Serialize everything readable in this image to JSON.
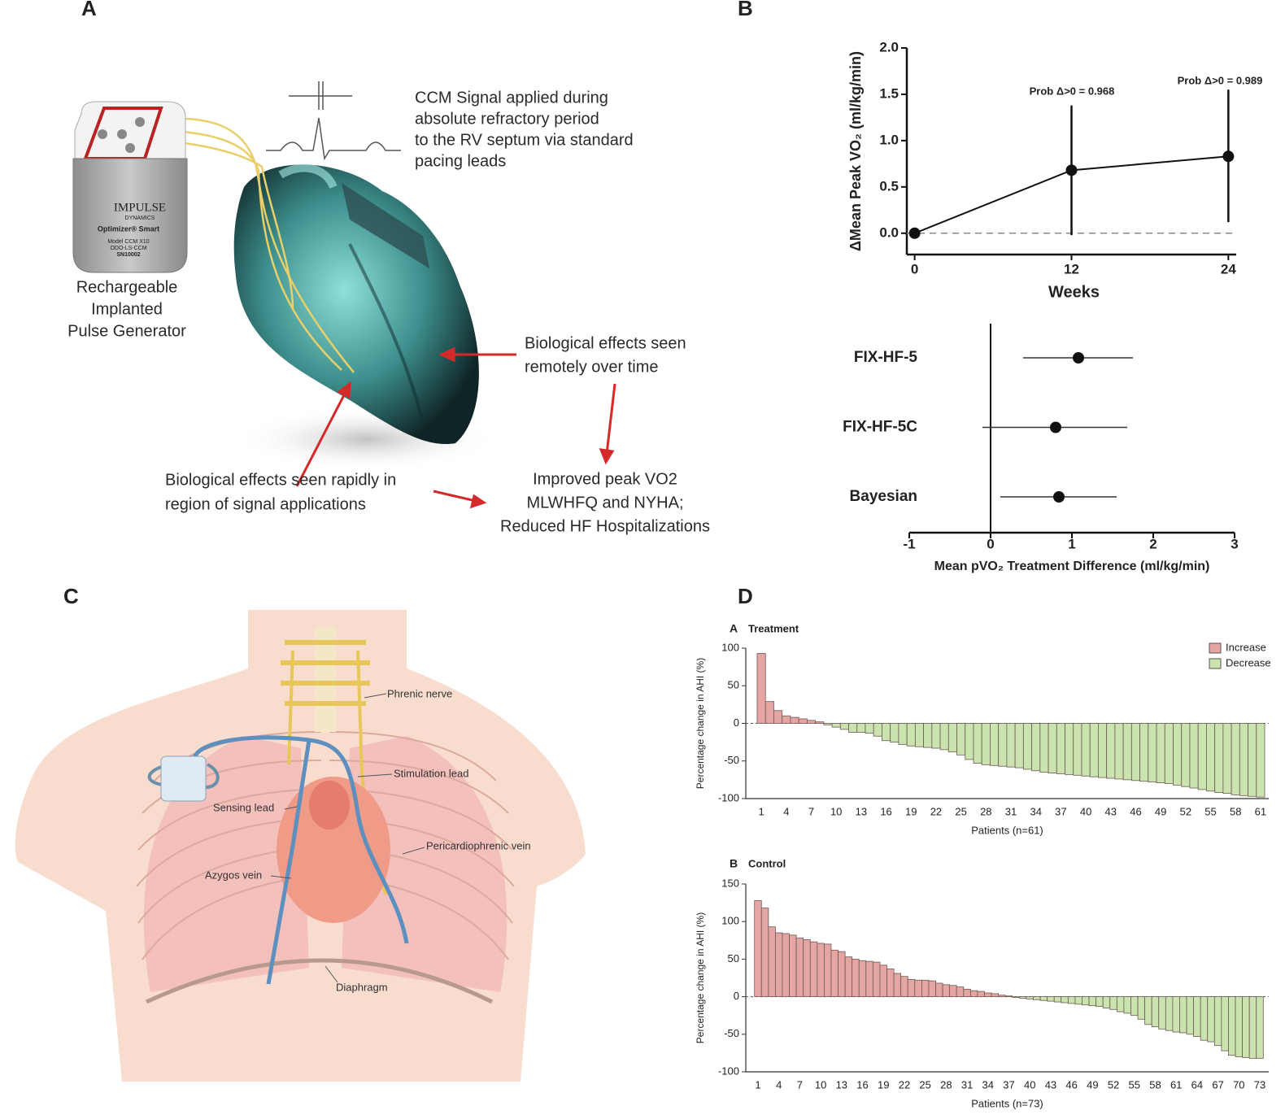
{
  "panels": [
    "A",
    "B",
    "C",
    "D"
  ],
  "diagram_a": {
    "signal_text": [
      "CCM Signal applied during",
      "absolute refractory period",
      "to the RV septum via standard",
      "pacing leads"
    ],
    "device_text": [
      "IMPULSE",
      "DYNAMICS",
      "Optimizer® Smart",
      "Model CCM X10",
      "ODO-LS-CCM",
      "SN10002"
    ],
    "generator_label": [
      "Rechargeable",
      "Implanted",
      "Pulse Generator"
    ],
    "remote_text": [
      "Biological effects seen",
      "remotely over time"
    ],
    "rapid_text": [
      "Biological effects seen rapidly in",
      "region of signal applications"
    ],
    "outcome_text": [
      "Improved peak VO2",
      "MLWHFQ and NYHA;",
      "Reduced HF Hospitalizations"
    ]
  },
  "diagram_c": {
    "labels": [
      "Phrenic nerve",
      "Stimulation lead",
      "Sensing lead",
      "Pericardiophrenic vein",
      "Azygos vein",
      "Diaphragm"
    ]
  },
  "chart_data": [
    {
      "type": "line",
      "x_label": "Weeks",
      "y_label": "ΔMean Peak VO₂ (ml/kg/min)",
      "x": [
        0,
        12,
        24
      ],
      "values": [
        0,
        0.68,
        0.83
      ],
      "lower": [
        null,
        -0.02,
        0.12
      ],
      "upper": [
        null,
        1.38,
        1.55
      ],
      "annotations": [
        "Prob Δ>0 = 0.968",
        "Prob Δ>0 = 0.989"
      ],
      "xlim": [
        -0.6,
        24.6
      ],
      "xticks": [
        0,
        12,
        24
      ],
      "ylim": [
        -0.23,
        2.0
      ],
      "yticks": [
        {
          "value": 0,
          "label": "0.0"
        },
        0.5,
        {
          "value": 1,
          "label": "1.0"
        },
        1.5,
        {
          "value": 2,
          "label": "2.0"
        }
      ],
      "zero_line": true,
      "color": "#111111"
    },
    {
      "type": "forest",
      "x_label": "Mean pVO₂ Treatment Difference (ml/kg/min)",
      "categories": [
        "FIX-HF-5",
        "FIX-HF-5C",
        "Bayesian"
      ],
      "values": [
        1.08,
        0.8,
        0.84
      ],
      "lower": [
        0.4,
        -0.1,
        0.12
      ],
      "upper": [
        1.75,
        1.68,
        1.55
      ],
      "xlim": [
        -1,
        3
      ],
      "xticks": [
        -1,
        0,
        1,
        2,
        3
      ],
      "color": "#111111"
    },
    {
      "type": "bar",
      "panel_label": "A",
      "title": "Treatment",
      "x_label": "Patients (n=61)",
      "y_label": "Percentage change in AHI (%)",
      "categories": [
        "1",
        null,
        null,
        "4",
        null,
        null,
        "7",
        null,
        null,
        "10",
        null,
        null,
        "13",
        null,
        null,
        "16",
        null,
        null,
        "19",
        null,
        null,
        "22",
        null,
        null,
        "25",
        null,
        null,
        "28",
        null,
        null,
        "31",
        null,
        null,
        "34",
        null,
        null,
        "37",
        null,
        null,
        "40",
        null,
        null,
        "43",
        null,
        null,
        "46",
        null,
        null,
        "49",
        null,
        null,
        "52",
        null,
        null,
        "55",
        null,
        null,
        "58",
        null,
        null,
        "61"
      ],
      "values": [
        93,
        29,
        17,
        10,
        8,
        6,
        4,
        2,
        -2,
        -5,
        -8,
        -12,
        -12,
        -13,
        -17,
        -23,
        -25,
        -28,
        -30,
        -31,
        -32,
        -33,
        -35,
        -38,
        -42,
        -48,
        -53,
        -55,
        -56,
        -57,
        -58,
        -59,
        -61,
        -63,
        -65,
        -66,
        -67,
        -68,
        -69,
        -70,
        -71,
        -72,
        -73,
        -74,
        -75,
        -76,
        -77,
        -78,
        -79,
        -80,
        -82,
        -84,
        -86,
        -88,
        -90,
        -92,
        -93,
        -95,
        -96,
        -97,
        -98
      ],
      "ylim": [
        -100,
        100
      ],
      "yticks": [
        -100,
        -50,
        0,
        50,
        100
      ],
      "legend": [
        {
          "name": "Increase",
          "color": "#e4a5a3"
        },
        {
          "name": "Decrease",
          "color": "#cbe3ae"
        }
      ],
      "legend_position": "upper right"
    },
    {
      "type": "bar",
      "panel_label": "B",
      "title": "Control",
      "x_label": "Patients (n=73)",
      "y_label": "Percentage change in AHI (%)",
      "categories": [
        "1",
        null,
        null,
        "4",
        null,
        null,
        "7",
        null,
        null,
        "10",
        null,
        null,
        "13",
        null,
        null,
        "16",
        null,
        null,
        "19",
        null,
        null,
        "22",
        null,
        null,
        "25",
        null,
        null,
        "28",
        null,
        null,
        "31",
        null,
        null,
        "34",
        null,
        null,
        "37",
        null,
        null,
        "40",
        null,
        null,
        "43",
        null,
        null,
        "46",
        null,
        null,
        "49",
        null,
        null,
        "52",
        null,
        null,
        "55",
        null,
        null,
        "58",
        null,
        null,
        "61",
        null,
        null,
        "64",
        null,
        null,
        "67",
        null,
        null,
        "70",
        null,
        null,
        "73"
      ],
      "values": [
        128,
        118,
        93,
        85,
        84,
        82,
        78,
        76,
        73,
        71,
        70,
        62,
        60,
        53,
        50,
        48,
        47,
        46,
        42,
        37,
        31,
        27,
        23,
        22,
        22,
        21,
        18,
        16,
        15,
        13,
        10,
        8,
        7,
        5,
        4,
        2,
        1,
        -1,
        -2,
        -3,
        -4,
        -5,
        -6,
        -7,
        -8,
        -9,
        -10,
        -11,
        -12,
        -13,
        -15,
        -17,
        -20,
        -22,
        -25,
        -30,
        -37,
        -40,
        -43,
        -45,
        -47,
        -48,
        -50,
        -53,
        -58,
        -60,
        -65,
        -72,
        -78,
        -80,
        -81,
        -82,
        -82
      ],
      "ylim": [
        -100,
        150
      ],
      "yticks": [
        -100,
        -50,
        0,
        50,
        100,
        150
      ],
      "legend": [
        {
          "name": "Increase",
          "color": "#e4a5a3"
        },
        {
          "name": "Decrease",
          "color": "#cbe3ae"
        }
      ]
    }
  ]
}
